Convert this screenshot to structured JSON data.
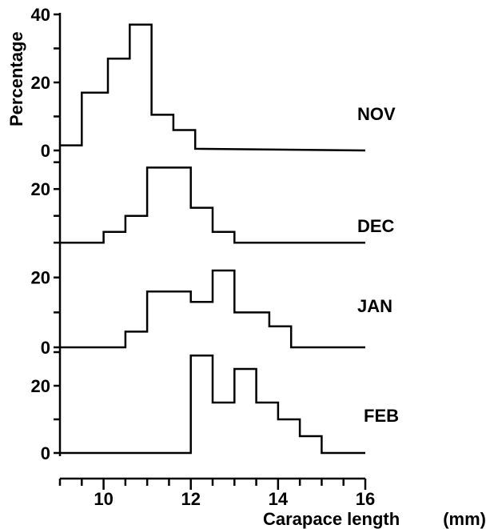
{
  "chart_data": {
    "type": "step",
    "xlabel": "Carapace length",
    "xunit": "(mm)",
    "ylabel": "Percentage",
    "xlim": [
      9,
      16
    ],
    "x_ticks": [
      10,
      12,
      14,
      16
    ],
    "x_minor_step": 0.5,
    "panels": [
      {
        "name": "NOV",
        "ylim": [
          0,
          40
        ],
        "y_ticks": [
          0,
          20,
          40
        ],
        "y_tick_labels": [
          "0",
          "20",
          "40"
        ],
        "points": [
          [
            9,
            1.5
          ],
          [
            9.5,
            1.5
          ],
          [
            9.5,
            17
          ],
          [
            10.1,
            17
          ],
          [
            10.1,
            27
          ],
          [
            10.6,
            27
          ],
          [
            10.6,
            37
          ],
          [
            11.1,
            37
          ],
          [
            11.1,
            10.5
          ],
          [
            11.6,
            10.5
          ],
          [
            11.6,
            6
          ],
          [
            12.1,
            6
          ],
          [
            12.1,
            0.5
          ],
          [
            16,
            0
          ]
        ]
      },
      {
        "name": "DEC",
        "ylim": [
          -8,
          32
        ],
        "y_ticks": [
          20
        ],
        "y_tick_labels": [
          "20"
        ],
        "points": [
          [
            9,
            0
          ],
          [
            10,
            0
          ],
          [
            10,
            4
          ],
          [
            10.5,
            4
          ],
          [
            10.5,
            10
          ],
          [
            11,
            10
          ],
          [
            11,
            28
          ],
          [
            12,
            28
          ],
          [
            12,
            13
          ],
          [
            12.5,
            13
          ],
          [
            12.5,
            4
          ],
          [
            13,
            4
          ],
          [
            13,
            0
          ],
          [
            16,
            0
          ]
        ]
      },
      {
        "name": "JAN",
        "ylim": [
          0,
          22
        ],
        "y_ticks": [
          0,
          20
        ],
        "y_tick_labels": [
          "0",
          "20"
        ],
        "points": [
          [
            9,
            0
          ],
          [
            10.5,
            0
          ],
          [
            10.5,
            4.5
          ],
          [
            11,
            4.5
          ],
          [
            11,
            16
          ],
          [
            12,
            16
          ],
          [
            12,
            13
          ],
          [
            12.5,
            13
          ],
          [
            12.5,
            22
          ],
          [
            13,
            22
          ],
          [
            13,
            10
          ],
          [
            13.8,
            10
          ],
          [
            13.8,
            6
          ],
          [
            14.3,
            6
          ],
          [
            14.3,
            0
          ],
          [
            16,
            0
          ]
        ]
      },
      {
        "name": "FEB",
        "ylim": [
          0,
          30
        ],
        "y_ticks": [
          0,
          20
        ],
        "y_tick_labels": [
          "0",
          "20"
        ],
        "points": [
          [
            9,
            0
          ],
          [
            12,
            0
          ],
          [
            12,
            29
          ],
          [
            12.5,
            29
          ],
          [
            12.5,
            15
          ],
          [
            13,
            15
          ],
          [
            13,
            25
          ],
          [
            13.5,
            25
          ],
          [
            13.5,
            15
          ],
          [
            14,
            15
          ],
          [
            14,
            10
          ],
          [
            14.5,
            10
          ],
          [
            14.5,
            5
          ],
          [
            15,
            5
          ],
          [
            15,
            0
          ],
          [
            16,
            0
          ]
        ]
      }
    ]
  }
}
